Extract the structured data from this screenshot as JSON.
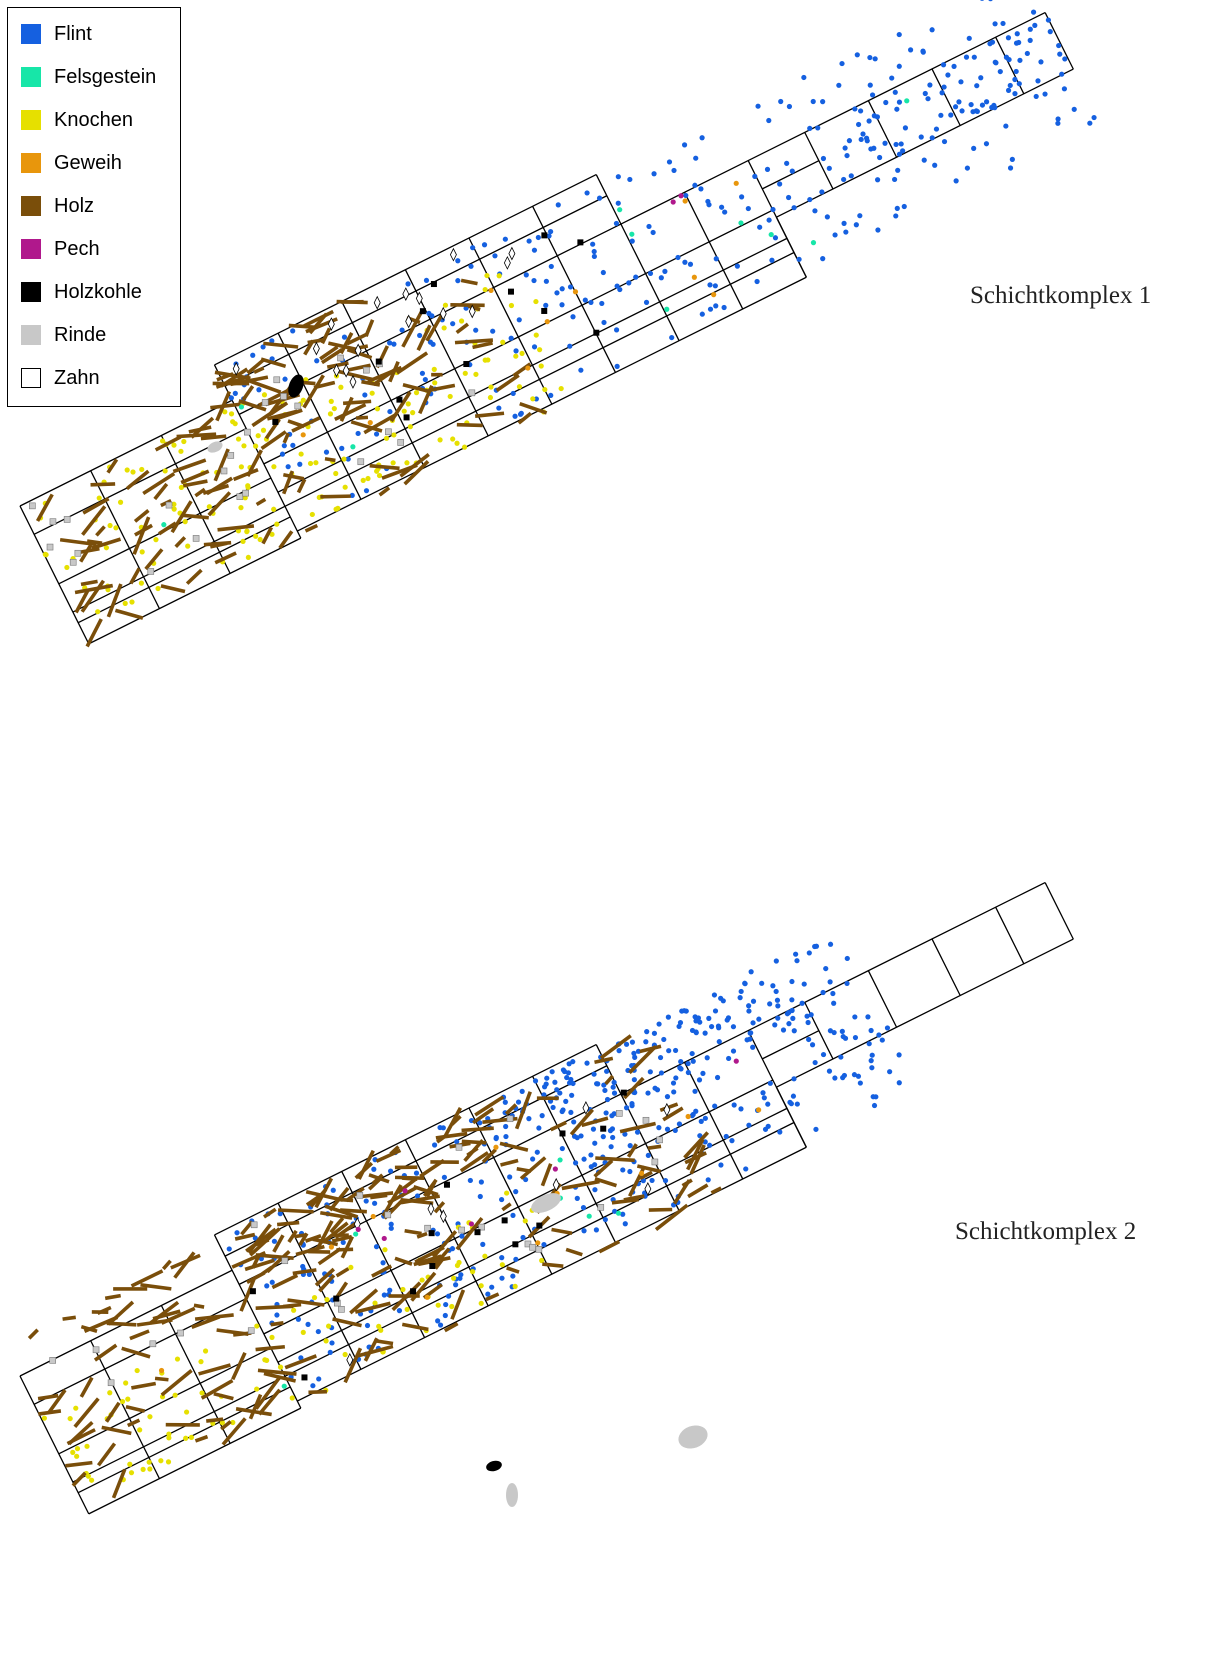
{
  "colors": {
    "flint": "#1560e0",
    "felsgestein": "#17e6a8",
    "knochen": "#e6e000",
    "geweih": "#e8960c",
    "holz": "#7a4e0a",
    "pech": "#b0188c",
    "holzkohle": "#000000",
    "rinde": "#c8c8c8",
    "zahn": "#ffffff"
  },
  "legend": {
    "items": [
      {
        "key": "flint",
        "label": "Flint"
      },
      {
        "key": "felsgestein",
        "label": "Felsgestein"
      },
      {
        "key": "knochen",
        "label": "Knochen"
      },
      {
        "key": "geweih",
        "label": "Geweih"
      },
      {
        "key": "holz",
        "label": "Holz"
      },
      {
        "key": "pech",
        "label": "Pech"
      },
      {
        "key": "holzkohle",
        "label": "Holzkohle"
      },
      {
        "key": "rinde",
        "label": "Rinde"
      },
      {
        "key": "zahn",
        "label": "Zahn"
      }
    ]
  },
  "panels": [
    {
      "label": "Schichtkomplex 1"
    },
    {
      "label": "Schichtkomplex 2"
    }
  ]
}
